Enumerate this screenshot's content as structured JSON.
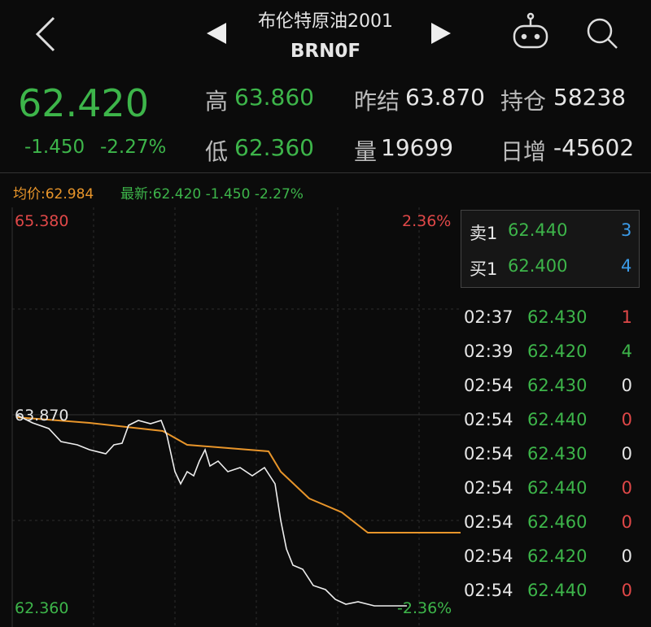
{
  "header": {
    "title": "布伦特原油2001",
    "code": "BRN0F"
  },
  "quote": {
    "price": "62.420",
    "change": "-1.450",
    "change_pct": "-2.27%",
    "high": {
      "label": "高",
      "value": "63.860"
    },
    "prev_settle": {
      "label": "昨结",
      "value": "63.870"
    },
    "open_interest": {
      "label": "持仓",
      "value": "58238"
    },
    "low": {
      "label": "低",
      "value": "62.360"
    },
    "volume": {
      "label": "量",
      "value": "19699"
    },
    "daily_change": {
      "label": "日增",
      "value": "-45602"
    }
  },
  "legend": {
    "average": "均价:62.984",
    "latest": "最新:62.420 -1.450 -2.27%"
  },
  "chart": {
    "top_price": "65.380",
    "top_pct": "2.36%",
    "mid_price": "63.870",
    "bottom_price": "62.360",
    "bottom_pct": "-2.36%"
  },
  "order_book": {
    "ask": {
      "label": "卖1",
      "price": "62.440",
      "qty": "3"
    },
    "bid": {
      "label": "买1",
      "price": "62.400",
      "qty": "4"
    }
  },
  "trades": [
    {
      "time": "02:37",
      "price": "62.430",
      "qty": "1",
      "color": "#e04848"
    },
    {
      "time": "02:39",
      "price": "62.420",
      "qty": "4",
      "color": "#3db54a"
    },
    {
      "time": "02:54",
      "price": "62.430",
      "qty": "0",
      "color": "#e6e6e6"
    },
    {
      "time": "02:54",
      "price": "62.440",
      "qty": "0",
      "color": "#e04848"
    },
    {
      "time": "02:54",
      "price": "62.430",
      "qty": "0",
      "color": "#e6e6e6"
    },
    {
      "time": "02:54",
      "price": "62.440",
      "qty": "0",
      "color": "#e04848"
    },
    {
      "time": "02:54",
      "price": "62.460",
      "qty": "0",
      "color": "#e04848"
    },
    {
      "time": "02:54",
      "price": "62.420",
      "qty": "0",
      "color": "#e6e6e6"
    },
    {
      "time": "02:54",
      "price": "62.440",
      "qty": "0",
      "color": "#e04848"
    }
  ]
}
